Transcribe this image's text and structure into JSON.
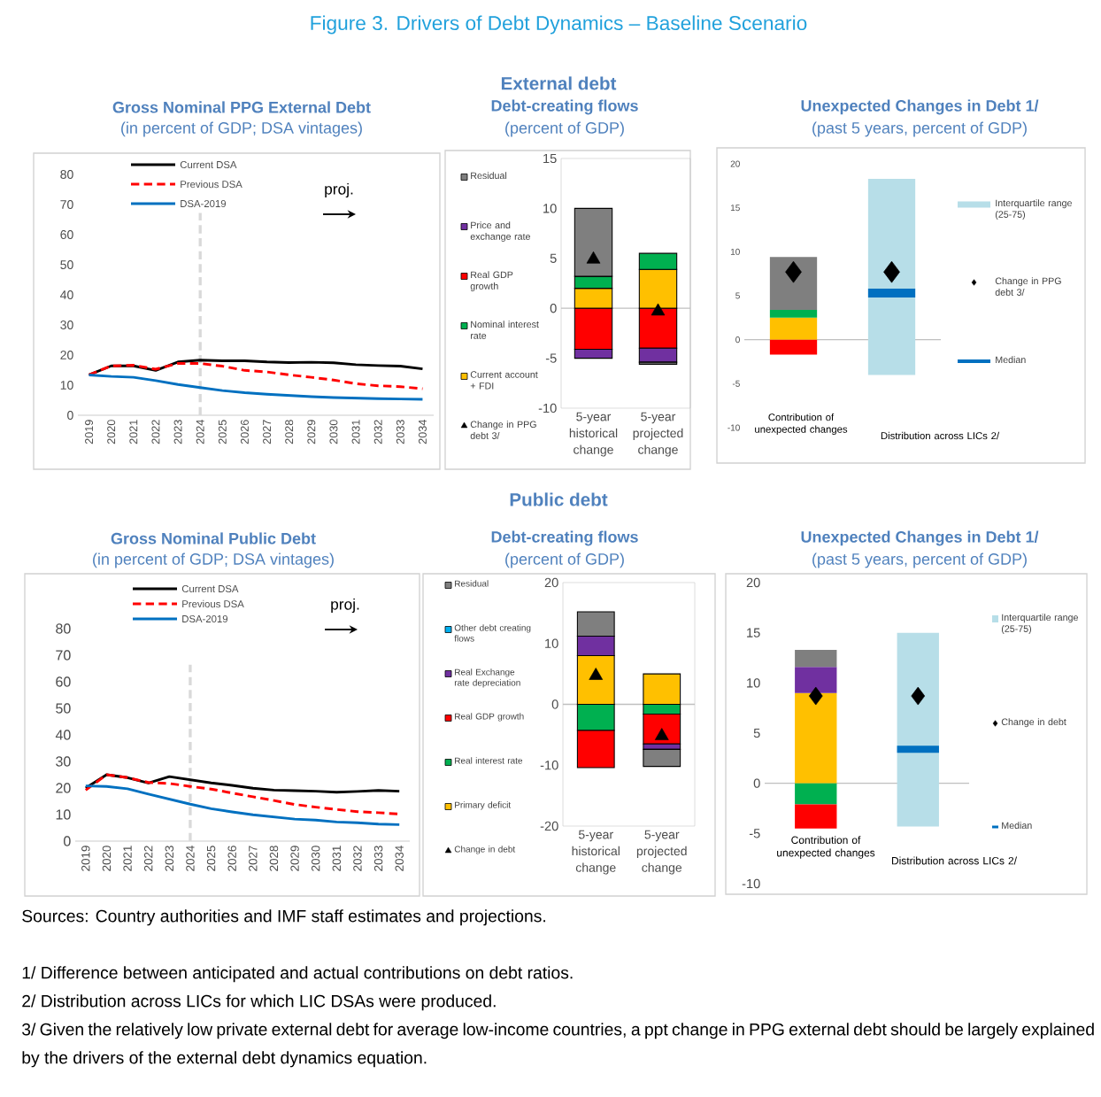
{
  "chart_data": [
    {
      "type": "other",
      "title": "Figure 3. Drivers of Debt Dynamics – Baseline Scenario",
      "subtitle": "External debt"
    },
    {
      "type": "line",
      "title": "Gross Nominal PPG External Debt",
      "subtitle": "(in percent of GDP; DSA vintages)",
      "categories": [
        "2019",
        "2020",
        "2021",
        "2022",
        "2023",
        "2024",
        "2025",
        "2026",
        "2027",
        "2028",
        "2029",
        "2030",
        "2031",
        "2032",
        "2033",
        "2034"
      ],
      "ylim": [
        0,
        80
      ],
      "yticks": [
        0,
        10,
        20,
        30,
        40,
        50,
        60,
        70,
        80
      ],
      "legend": "top",
      "annotations": [
        "proj."
      ],
      "ref_lines": [
        {
          "axis": "x",
          "value": "2024",
          "color": "#d9d9d9",
          "line_style": "dashed"
        }
      ],
      "series": [
        {
          "name": "Current DSA",
          "color": "#000000",
          "line_style": "solid",
          "values": [
            13.4,
            16.4,
            16.4,
            14.9,
            17.7,
            18.3,
            18.1,
            18.1,
            17.7,
            17.5,
            17.6,
            17.4,
            16.8,
            16.5,
            16.3,
            15.4
          ]
        },
        {
          "name": "Previous DSA",
          "color": "#ff0000",
          "line_style": "dashed",
          "values": [
            13.4,
            16.4,
            16.6,
            15.3,
            17.2,
            17.2,
            16.3,
            14.9,
            14.4,
            13.4,
            12.6,
            11.7,
            10.5,
            9.8,
            9.5,
            8.8
          ]
        },
        {
          "name": "DSA-2019",
          "color": "#0070c0",
          "line_style": "solid",
          "values": [
            13.4,
            12.9,
            12.6,
            11.5,
            10.2,
            9.2,
            8.2,
            7.5,
            7.0,
            6.6,
            6.2,
            5.9,
            5.7,
            5.5,
            5.4,
            5.3
          ]
        }
      ]
    },
    {
      "type": "bar",
      "stacked": true,
      "title": "Debt-creating flows",
      "subtitle": "(percent of GDP)",
      "categories": [
        "5-year historical change",
        "5-year projected change"
      ],
      "ylim": [
        -10,
        15
      ],
      "yticks": [
        -10,
        -5,
        0,
        5,
        10,
        15
      ],
      "legend": "left",
      "series": [
        {
          "name": "Current account + FDI",
          "color": "#ffc000",
          "values": [
            2.0,
            3.9
          ]
        },
        {
          "name": "Nominal interest rate",
          "color": "#00b050",
          "values": [
            1.2,
            1.6
          ]
        },
        {
          "name": "Real GDP growth",
          "color": "#ff0000",
          "values": [
            -4.1,
            -4.0
          ]
        },
        {
          "name": "Price and exchange rate",
          "color": "#7030a0",
          "values": [
            -0.9,
            -1.4
          ]
        },
        {
          "name": "Residual",
          "color": "#7f7f7f",
          "values": [
            6.8,
            -0.2
          ]
        },
        {
          "name": "Change in PPG debt 3/",
          "type": "scatter",
          "marker": "triangle",
          "color": "#000000",
          "values": [
            4.9,
            -0.3
          ]
        }
      ]
    },
    {
      "type": "bar",
      "stacked": true,
      "title": "Unexpected Changes in Debt 1/",
      "subtitle": "(past 5 years, percent of GDP)",
      "categories": [
        "Contribution of unexpected changes",
        "Distribution across LICs 2/"
      ],
      "ylim": [
        -10,
        20
      ],
      "yticks": [
        -10,
        -5,
        0,
        5,
        10,
        15,
        20
      ],
      "legend": "right",
      "annotations": [
        "Median"
      ],
      "series": [
        {
          "color": "#ffc000",
          "values": [
            2.5,
            null
          ]
        },
        {
          "color": "#00b050",
          "values": [
            0.9,
            null
          ]
        },
        {
          "color": "#ff0000",
          "values": [
            -1.7,
            null
          ]
        },
        {
          "color": "#7f7f7f",
          "values": [
            6.0,
            null
          ]
        },
        {
          "name": "Interquartile range (25-75)",
          "type": "box",
          "color": "#b7dee8",
          "boxes": [
            null,
            {
              "low": -4.0,
              "q1": -4.0,
              "median": 5.3,
              "q3": 18.3,
              "high": 18.3
            }
          ]
        },
        {
          "name": "Change in PPG debt 3/",
          "type": "scatter",
          "marker": "diamond",
          "color": "#000000",
          "values": [
            7.7,
            7.7
          ]
        }
      ]
    },
    {
      "type": "other",
      "title": "Public debt"
    },
    {
      "type": "line",
      "title": "Gross Nominal Public Debt",
      "subtitle": "(in percent of GDP; DSA vintages)",
      "categories": [
        "2019",
        "2020",
        "2021",
        "2022",
        "2023",
        "2024",
        "2025",
        "2026",
        "2027",
        "2028",
        "2029",
        "2030",
        "2031",
        "2032",
        "2033",
        "2034"
      ],
      "ylim": [
        0,
        80
      ],
      "yticks": [
        0,
        10,
        20,
        30,
        40,
        50,
        60,
        70,
        80
      ],
      "legend": "top",
      "annotations": [
        "proj."
      ],
      "ref_lines": [
        {
          "axis": "x",
          "value": "2024",
          "color": "#d9d9d9",
          "line_style": "dashed"
        }
      ],
      "series": [
        {
          "name": "Current DSA",
          "color": "#000000",
          "line_style": "solid",
          "values": [
            20.0,
            25.0,
            23.9,
            21.9,
            24.3,
            23.1,
            21.9,
            21.0,
            19.9,
            19.2,
            19.0,
            18.8,
            18.4,
            18.7,
            19.1,
            18.8
          ]
        },
        {
          "name": "Previous DSA",
          "color": "#ff0000",
          "line_style": "dashed",
          "values": [
            19.2,
            25.0,
            23.9,
            22.1,
            21.7,
            20.6,
            19.6,
            18.1,
            16.7,
            15.3,
            13.8,
            12.8,
            11.9,
            11.1,
            10.7,
            10.2
          ]
        },
        {
          "name": "DSA-2019",
          "color": "#0070c0",
          "line_style": "solid",
          "values": [
            20.8,
            20.6,
            19.7,
            17.7,
            15.8,
            13.9,
            12.2,
            11.0,
            9.9,
            9.1,
            8.3,
            7.9,
            7.2,
            6.9,
            6.4,
            6.2
          ]
        }
      ]
    },
    {
      "type": "bar",
      "stacked": true,
      "title": "Debt-creating flows",
      "subtitle": "(percent of GDP)",
      "categories": [
        "5-year historical change",
        "5-year projected change"
      ],
      "ylim": [
        -20,
        20
      ],
      "yticks": [
        -20,
        -10,
        0,
        10,
        20
      ],
      "legend": "left",
      "series": [
        {
          "name": "Primary deficit",
          "color": "#ffc000",
          "values": [
            8.0,
            5.0
          ]
        },
        {
          "name": "Real interest rate",
          "color": "#00b050",
          "values": [
            -4.3,
            -1.6
          ]
        },
        {
          "name": "Real GDP growth",
          "color": "#ff0000",
          "values": [
            -6.1,
            -4.9
          ]
        },
        {
          "name": "Real Exchange rate depreciation",
          "color": "#7030a0",
          "values": [
            3.2,
            -0.9
          ]
        },
        {
          "name": "Other debt creating flows",
          "color": "#00b0f0",
          "values": [
            0,
            0
          ]
        },
        {
          "name": "Residual",
          "color": "#7f7f7f",
          "values": [
            4.0,
            -2.8
          ]
        },
        {
          "name": "Change in debt",
          "type": "scatter",
          "marker": "triangle",
          "color": "#000000",
          "values": [
            4.7,
            -5.2
          ]
        }
      ]
    },
    {
      "type": "bar",
      "stacked": true,
      "title": "Unexpected Changes in Debt 1/",
      "subtitle": "(past 5 years, percent of GDP)",
      "categories": [
        "Contribution of unexpected changes",
        "Distribution across LICs 2/"
      ],
      "ylim": [
        -10,
        20
      ],
      "yticks": [
        -10,
        -5,
        0,
        5,
        10,
        15,
        20
      ],
      "legend": "right",
      "annotations": [
        "Median"
      ],
      "series": [
        {
          "color": "#ffc000",
          "values": [
            9.0,
            null
          ]
        },
        {
          "color": "#00b050",
          "values": [
            -2.1,
            null
          ]
        },
        {
          "color": "#ff0000",
          "values": [
            -2.4,
            null
          ]
        },
        {
          "color": "#7030a0",
          "values": [
            2.6,
            null
          ]
        },
        {
          "color": "#7f7f7f",
          "values": [
            1.7,
            null
          ]
        },
        {
          "name": "Interquartile range (25-75)",
          "type": "box",
          "color": "#b7dee8",
          "boxes": [
            null,
            {
              "low": -4.3,
              "q1": -4.3,
              "median": 3.4,
              "q3": 15.0,
              "high": 15.0
            }
          ]
        },
        {
          "name": "Change in debt",
          "type": "scatter",
          "marker": "diamond",
          "color": "#000000",
          "values": [
            8.7,
            8.7
          ]
        }
      ]
    },
    {
      "type": "other",
      "annotations": [
        "Sources: Country authorities and IMF staff estimates and projections.",
        "1/ Difference between anticipated and actual contributions on debt ratios.",
        "2/ Distribution across LICs for which LIC DSAs were produced.",
        "3/ Given the relatively low private external debt for average low-income countries, a ppt change in PPG external debt should be largely explained by the drivers of the external debt dynamics equation."
      ]
    }
  ]
}
